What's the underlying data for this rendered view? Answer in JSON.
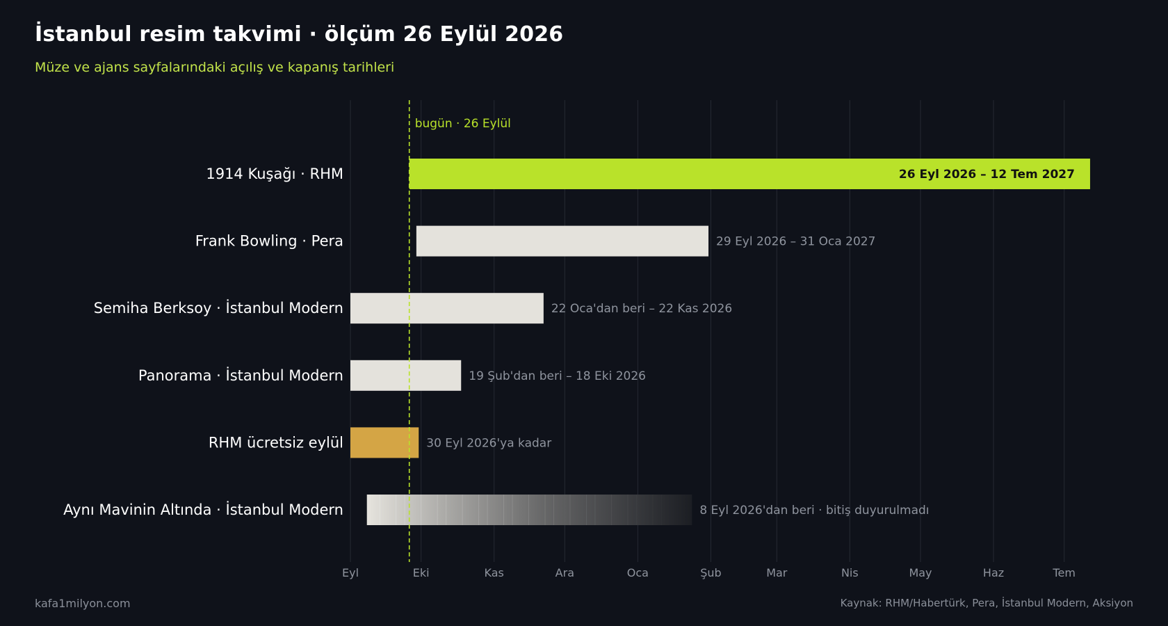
{
  "header": {
    "title": "İstanbul resim takvimi · ölçüm 26 Eylül 2026",
    "subtitle": "Müze ve ajans sayfalarındaki açılış ve kapanış tarihleri"
  },
  "footer": {
    "site": "kafa1milyon.com",
    "source": "Kaynak: RHM/Habertürk, Pera, İstanbul Modern, Aksiyon"
  },
  "colors": {
    "background": "#0f121a",
    "accent": "#b9e22a",
    "neutral_bar": "#e4e2dc",
    "gold_bar": "#d4a545",
    "muted_text": "#8f949e",
    "grid": "#262a33"
  },
  "chart_data": {
    "type": "bar",
    "orientation": "horizontal",
    "subtype": "timeline",
    "x_axis_type": "date",
    "xlim": [
      "2026-09-01",
      "2027-07-25"
    ],
    "x_ticks": [
      {
        "date": "2026-09-01",
        "label": "Eyl"
      },
      {
        "date": "2026-10-01",
        "label": "Eki"
      },
      {
        "date": "2026-11-01",
        "label": "Kas"
      },
      {
        "date": "2026-12-01",
        "label": "Ara"
      },
      {
        "date": "2027-01-01",
        "label": "Oca"
      },
      {
        "date": "2027-02-01",
        "label": "Şub"
      },
      {
        "date": "2027-03-01",
        "label": "Mar"
      },
      {
        "date": "2027-04-01",
        "label": "Nis"
      },
      {
        "date": "2027-05-01",
        "label": "May"
      },
      {
        "date": "2027-06-01",
        "label": "Haz"
      },
      {
        "date": "2027-07-01",
        "label": "Tem"
      }
    ],
    "grid": true,
    "today": {
      "date": "2026-09-26",
      "label": "bugün · 26 Eylül"
    },
    "categories": [
      "1914 Kuşağı · RHM",
      "Frank Bowling · Pera",
      "Semiha Berksoy · İstanbul Modern",
      "Panorama · İstanbul Modern",
      "RHM ücretsiz eylül",
      "Aynı Mavinin Altında · İstanbul Modern"
    ],
    "bars": [
      {
        "label": "1914 Kuşağı · RHM",
        "start": "2026-09-26",
        "end": "2027-07-12",
        "style": "highlight",
        "annotation": "26 Eyl 2026 – 12 Tem 2027",
        "annotation_position": "inside"
      },
      {
        "label": "Frank Bowling · Pera",
        "start": "2026-09-29",
        "end": "2027-01-31",
        "style": "neutral",
        "annotation": "29 Eyl 2026 – 31 Oca 2027",
        "annotation_position": "outside"
      },
      {
        "label": "Semiha Berksoy · İstanbul Modern",
        "start": "2026-09-01",
        "end": "2026-11-22",
        "style": "neutral",
        "start_before_axis": true,
        "annotation": "22 Oca'dan beri – 22 Kas 2026",
        "annotation_position": "outside"
      },
      {
        "label": "Panorama · İstanbul Modern",
        "start": "2026-09-01",
        "end": "2026-10-18",
        "style": "neutral",
        "start_before_axis": true,
        "annotation": "19 Şub'dan beri – 18 Eki 2026",
        "annotation_position": "outside"
      },
      {
        "label": "RHM ücretsiz eylül",
        "start": "2026-09-01",
        "end": "2026-09-30",
        "style": "gold",
        "annotation": "30 Eyl 2026'ya kadar",
        "annotation_position": "outside"
      },
      {
        "label": "Aynı Mavinin Altında · İstanbul Modern",
        "start": "2026-09-08",
        "end": "2027-01-24",
        "style": "fade",
        "open_ended": true,
        "annotation": "8 Eyl 2026'dan beri · bitiş duyurulmadı",
        "annotation_position": "outside"
      }
    ]
  }
}
